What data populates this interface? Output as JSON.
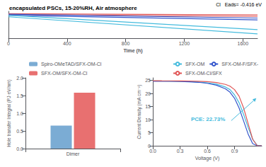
{
  "chart_data": [
    {
      "type": "line",
      "title": "encapsulated PSCs, 15-20%RH, Air atmosphere",
      "xlabel": "Time (h)",
      "x": [
        0,
        1700
      ],
      "series": [
        {
          "color": "#e05555",
          "values": [
            1.0,
            0.99
          ]
        },
        {
          "color": "#e05555",
          "values": [
            0.994,
            0.978
          ]
        },
        {
          "color": "#3355cc",
          "values": [
            0.996,
            0.965
          ]
        },
        {
          "color": "#3355cc",
          "values": [
            0.988,
            0.95
          ]
        },
        {
          "color": "#44bbdd",
          "values": [
            0.988,
            0.87
          ]
        },
        {
          "color": "#44bbdd",
          "values": [
            0.975,
            0.835
          ]
        }
      ],
      "xlim": [
        0,
        1700
      ],
      "xticks": [
        0,
        400,
        800,
        1200,
        1600
      ],
      "ylim": [
        0.8,
        1.02
      ],
      "tick_labels": "x",
      "grid": false,
      "annotations": [
        {
          "text": "Cl   Eads= -0.416 eV"
        }
      ]
    },
    {
      "type": "bar",
      "categories": [
        "Dimer"
      ],
      "series": [
        {
          "name": "Spiro-OMeTAD/SFX-OM-Cl",
          "color": "#7bacd4",
          "values": [
            0.65
          ]
        },
        {
          "name": "SFX-OM/SFX-OM-Cl",
          "color": "#e87070",
          "values": [
            1.58
          ]
        }
      ],
      "ylabel": "Hole transfer Integral (PJ·eV/nm)",
      "ylim": [
        0,
        2.0
      ],
      "yticks": [
        {
          "value": 0,
          "label": "0.0"
        },
        0.5,
        {
          "value": 1,
          "label": "1.0"
        },
        1.5,
        {
          "value": 2,
          "label": "2.0"
        }
      ],
      "legend": "upper left",
      "grid": false
    },
    {
      "type": "line",
      "x": [
        0.0,
        0.05,
        0.1,
        0.2,
        0.3,
        0.4,
        0.5,
        0.6,
        0.7,
        0.8,
        0.85,
        0.9,
        0.95,
        1.0,
        1.05,
        1.1,
        1.15,
        1.2
      ],
      "series": [
        {
          "name": "SFX-OM",
          "color": "#44bbdd",
          "values": [
            24.8,
            24.8,
            24.78,
            24.75,
            24.7,
            24.6,
            24.4,
            24.1,
            23.6,
            22.5,
            21.5,
            19.5,
            16.5,
            12.0,
            7.0,
            2.5,
            0.2,
            0.0
          ]
        },
        {
          "name": "SFX-OM-F/SFX-",
          "color": "#3355cc",
          "values": [
            24.7,
            24.7,
            24.68,
            24.65,
            24.6,
            24.5,
            24.3,
            23.9,
            23.2,
            21.8,
            20.5,
            18.2,
            14.5,
            9.5,
            4.5,
            0.8,
            0.0,
            0.0
          ]
        },
        {
          "name": "SFX-OM-Cl/SFX",
          "color": "#e05555",
          "values": [
            24.9,
            24.9,
            24.88,
            24.85,
            24.82,
            24.78,
            24.7,
            24.55,
            24.2,
            23.5,
            22.8,
            21.5,
            19.0,
            14.5,
            8.5,
            2.5,
            0.0,
            0.0
          ]
        }
      ],
      "xlabel": "Voltage (V)",
      "ylabel": "Current Density (mA cm⁻²)",
      "xlim": [
        0.0,
        1.2
      ],
      "xticks": [
        {
          "value": 0,
          "label": "0.0"
        },
        0.3,
        0.6,
        0.9
      ],
      "ylim": [
        0,
        26
      ],
      "yticks": [
        0,
        5,
        10,
        15,
        20,
        25
      ],
      "legend": "upper right",
      "grid": false,
      "annotations": [
        {
          "text": "PCE: 22.73%",
          "color": "#44bbdd"
        }
      ]
    }
  ]
}
